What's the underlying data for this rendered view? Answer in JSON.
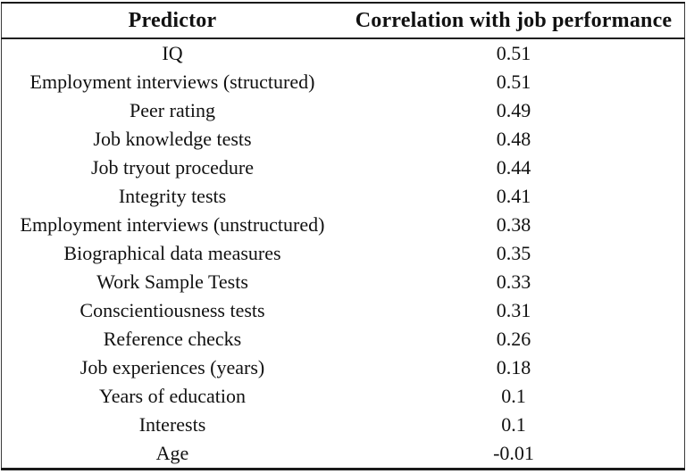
{
  "table": {
    "columns": [
      "Predictor",
      "Correlation with job performance"
    ],
    "rows": [
      {
        "predictor": "IQ",
        "correlation": "0.51"
      },
      {
        "predictor": "Employment interviews (structured)",
        "correlation": "0.51"
      },
      {
        "predictor": "Peer rating",
        "correlation": "0.49"
      },
      {
        "predictor": "Job knowledge tests",
        "correlation": "0.48"
      },
      {
        "predictor": "Job tryout procedure",
        "correlation": "0.44"
      },
      {
        "predictor": "Integrity tests",
        "correlation": "0.41"
      },
      {
        "predictor": "Employment interviews (unstructured)",
        "correlation": "0.38"
      },
      {
        "predictor": "Biographical data measures",
        "correlation": "0.35"
      },
      {
        "predictor": "Work Sample Tests",
        "correlation": "0.33"
      },
      {
        "predictor": "Conscientiousness tests",
        "correlation": "0.31"
      },
      {
        "predictor": "Reference checks",
        "correlation": "0.26"
      },
      {
        "predictor": "Job experiences (years)",
        "correlation": "0.18"
      },
      {
        "predictor": "Years of education",
        "correlation": "0.1"
      },
      {
        "predictor": "Interests",
        "correlation": "0.1"
      },
      {
        "predictor": "Age",
        "correlation": "-0.01"
      }
    ]
  },
  "colors": {
    "text": "#111111",
    "border": "#1a1a1a",
    "background": "#ffffff"
  },
  "chart_data": {
    "type": "table",
    "title": "",
    "categories": [
      "IQ",
      "Employment interviews (structured)",
      "Peer rating",
      "Job knowledge tests",
      "Job tryout procedure",
      "Integrity tests",
      "Employment interviews (unstructured)",
      "Biographical data measures",
      "Work Sample Tests",
      "Conscientiousness tests",
      "Reference checks",
      "Job experiences (years)",
      "Years of education",
      "Interests",
      "Age"
    ],
    "values": [
      0.51,
      0.51,
      0.49,
      0.48,
      0.44,
      0.41,
      0.38,
      0.35,
      0.33,
      0.31,
      0.26,
      0.18,
      0.1,
      0.1,
      -0.01
    ],
    "xlabel": "Predictor",
    "ylabel": "Correlation with job performance"
  }
}
